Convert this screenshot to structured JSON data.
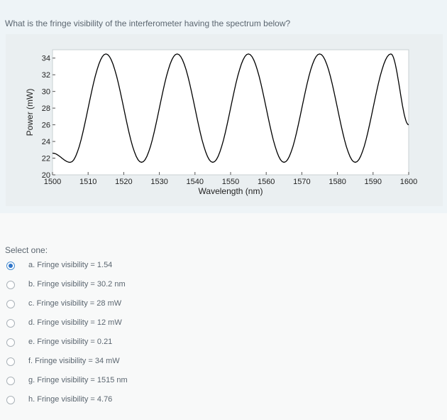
{
  "question": {
    "text": "What is the fringe visibility of the interferometer having the spectrum below?"
  },
  "chart_data": {
    "type": "line",
    "title": "",
    "xlabel": "Wavelength (nm)",
    "ylabel": "Power (mW)",
    "xlim": [
      1500,
      1600
    ],
    "ylim": [
      20,
      35
    ],
    "xticks": [
      1500,
      1510,
      1520,
      1530,
      1540,
      1550,
      1560,
      1570,
      1580,
      1590,
      1600
    ],
    "yticks": [
      20,
      22,
      24,
      26,
      28,
      30,
      32,
      34
    ],
    "grid": false,
    "series": [
      {
        "name": "",
        "color": "#000000",
        "x": [
          1500,
          1505,
          1515,
          1525,
          1535,
          1545,
          1555,
          1565,
          1575,
          1585,
          1595,
          1600
        ],
        "y": [
          22.6,
          21.5,
          34.5,
          21.5,
          34.5,
          21.5,
          34.5,
          21.5,
          34.5,
          21.5,
          34.5,
          26.0
        ]
      }
    ]
  },
  "answers": {
    "select_label": "Select one:",
    "options": [
      {
        "label": "a. Fringe visibility = 1.54",
        "selected": true
      },
      {
        "label": "b. Fringe visibility = 30.2 nm",
        "selected": false
      },
      {
        "label": "c. Fringe visibility = 28 mW",
        "selected": false
      },
      {
        "label": "d. Fringe visibility = 12 mW",
        "selected": false
      },
      {
        "label": "e. Fringe visibility = 0.21",
        "selected": false
      },
      {
        "label": "f. Fringe visibility = 34 mW",
        "selected": false
      },
      {
        "label": "g. Fringe visibility = 1515 nm",
        "selected": false
      },
      {
        "label": "h. Fringe visibility = 4.76",
        "selected": false
      }
    ]
  },
  "colors": {
    "selected_radio": "#2e74c9",
    "text": "#5b6670",
    "question_bg": "#eef4f7"
  }
}
